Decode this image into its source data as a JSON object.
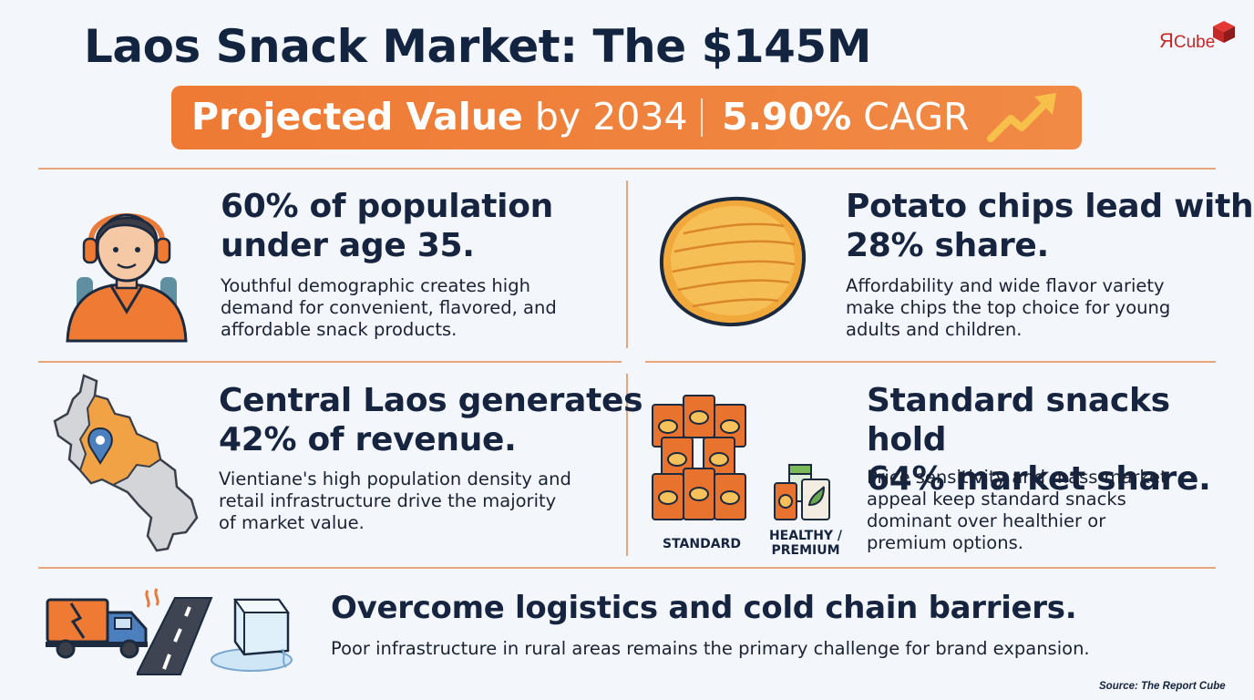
{
  "title": "Laos Snack Market: The $145M",
  "logo": {
    "mark": "Я",
    "text": "Cube"
  },
  "banner": {
    "projected_bold": "Projected Value",
    "projected_rest": "by 2034",
    "cagr_bold": "5.90%",
    "cagr_rest": "CAGR"
  },
  "cards": {
    "population": {
      "head_line1": "60% of population",
      "head_line2": "under age 35.",
      "body_line1": "Youthful demographic creates high",
      "body_line2": "demand for convenient, flavored, and",
      "body_line3": "affordable snack products."
    },
    "chips": {
      "head_line1": "Potato chips lead with",
      "head_line2": "28% share.",
      "body_line1": "Affordability and wide flavor variety",
      "body_line2": "make chips the top choice for young",
      "body_line3": "adults and children."
    },
    "central": {
      "head_line1": "Central Laos generates",
      "head_line2": "42% of revenue.",
      "body_line1": "Vientiane's high population density and",
      "body_line2": "retail infrastructure drive the majority",
      "body_line3": "of market value."
    },
    "standard": {
      "head_line1": "Standard snacks hold",
      "head_line2": "64% market share.",
      "body_line1": "Price sensitivity and mass-market",
      "body_line2": "appeal keep standard snacks",
      "body_line3": "dominant over healthier or",
      "body_line4": "premium options.",
      "label_standard": "STANDARD",
      "label_healthy_1": "HEALTHY /",
      "label_healthy_2": "PREMIUM"
    },
    "logistics": {
      "head": "Overcome logistics and cold chain barriers.",
      "body": "Poor infrastructure in rural areas remains the primary challenge for brand expansion."
    }
  },
  "source": "Source: The Report Cube",
  "colors": {
    "accent": "#ee7a34",
    "navy": "#16243f",
    "divider": "#e9a57a",
    "background": "#f3f7fb"
  },
  "icons": [
    "person-headphones-icon",
    "potato-chip-icon",
    "laos-map-icon",
    "location-pin-icon",
    "snack-bags-icon",
    "truck-icon",
    "road-icon",
    "ice-cube-icon",
    "trend-arrow-icon"
  ]
}
